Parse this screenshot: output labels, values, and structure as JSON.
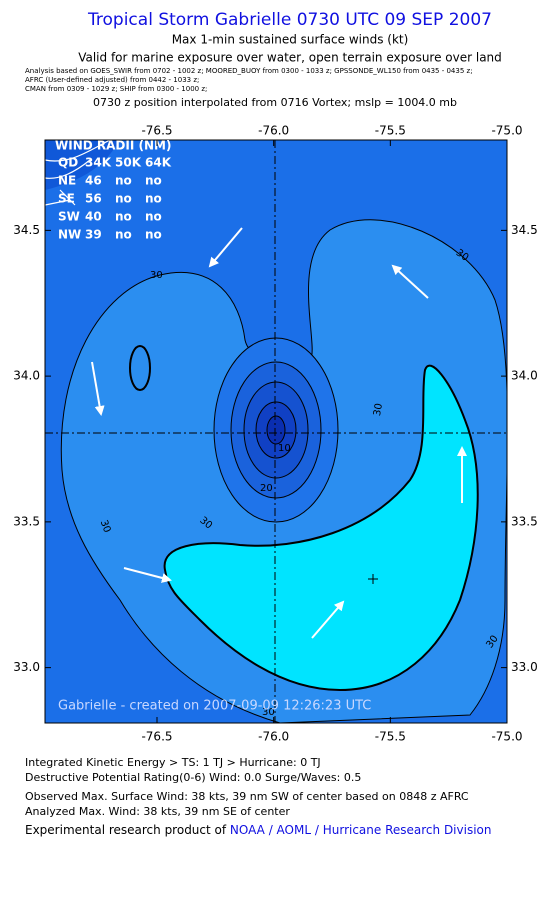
{
  "header": {
    "title": "Tropical Storm Gabrielle 0730 UTC 09 SEP 2007",
    "subtitle": "Max 1-min sustained surface winds (kt)",
    "validity": "Valid for marine exposure over water, open terrain exposure over land",
    "sources": [
      "Analysis based on  GOES_SWIR from 0702 - 1002 z;  MOORED_BUOY from 0300 - 1033 z;  GPSSONDE_WL150 from 0435 - 0435 z;",
      "AFRC  (User-defined adjusted) from 0442 - 1033 z;",
      "CMAN from 0309 - 1029 z;  SHIP from 0300 - 1000 z;"
    ],
    "position_note": "0730 z position interpolated from 0716 Vortex; mslp = 1004.0 mb"
  },
  "map": {
    "xlim": [
      -76.98,
      -75.0
    ],
    "ylim": [
      32.81,
      34.81
    ],
    "xticks": [
      -76.5,
      {
        "value": -76,
        "label": "-76.0"
      },
      -75.5,
      {
        "value": -75,
        "label": "-75.0"
      }
    ],
    "yticks": [
      {
        "value": 33,
        "label": "33.0"
      },
      33.5,
      {
        "value": 34,
        "label": "34.0"
      },
      34.5
    ],
    "wind_radii": {
      "title": "WIND RADII (NM)",
      "header": [
        "QD",
        "34K",
        "50K",
        "64K"
      ],
      "rows": [
        [
          "NE",
          "46",
          "no",
          "no"
        ],
        [
          "SE",
          "56",
          "no",
          "no"
        ],
        [
          "SW",
          "40",
          "no",
          "no"
        ],
        [
          "NW",
          "39",
          "no",
          "no"
        ]
      ]
    },
    "contour_labels": [
      "30",
      "30",
      "30",
      "30",
      "30",
      "30",
      "30",
      "20",
      "10"
    ],
    "credit": "Gabrielle - created on 2007-09-09 12:26:23 UTC"
  },
  "footer": {
    "lines": [
      "Integrated Kinetic Energy > TS: 1 TJ   > Hurricane: 0 TJ",
      "Destructive Potential Rating(0-6)   Wind: 0.0 Surge/Waves: 0.5",
      "Observed Max. Surface Wind: 38 kts, 39 nm SW of center based on 0848 z AFRC",
      "Analyzed Max. Wind: 38 kts, 39 nm SE of center"
    ],
    "product_prefix": "Experimental research product of ",
    "product_link": "NOAA / AOML / Hurricane Research Division"
  }
}
